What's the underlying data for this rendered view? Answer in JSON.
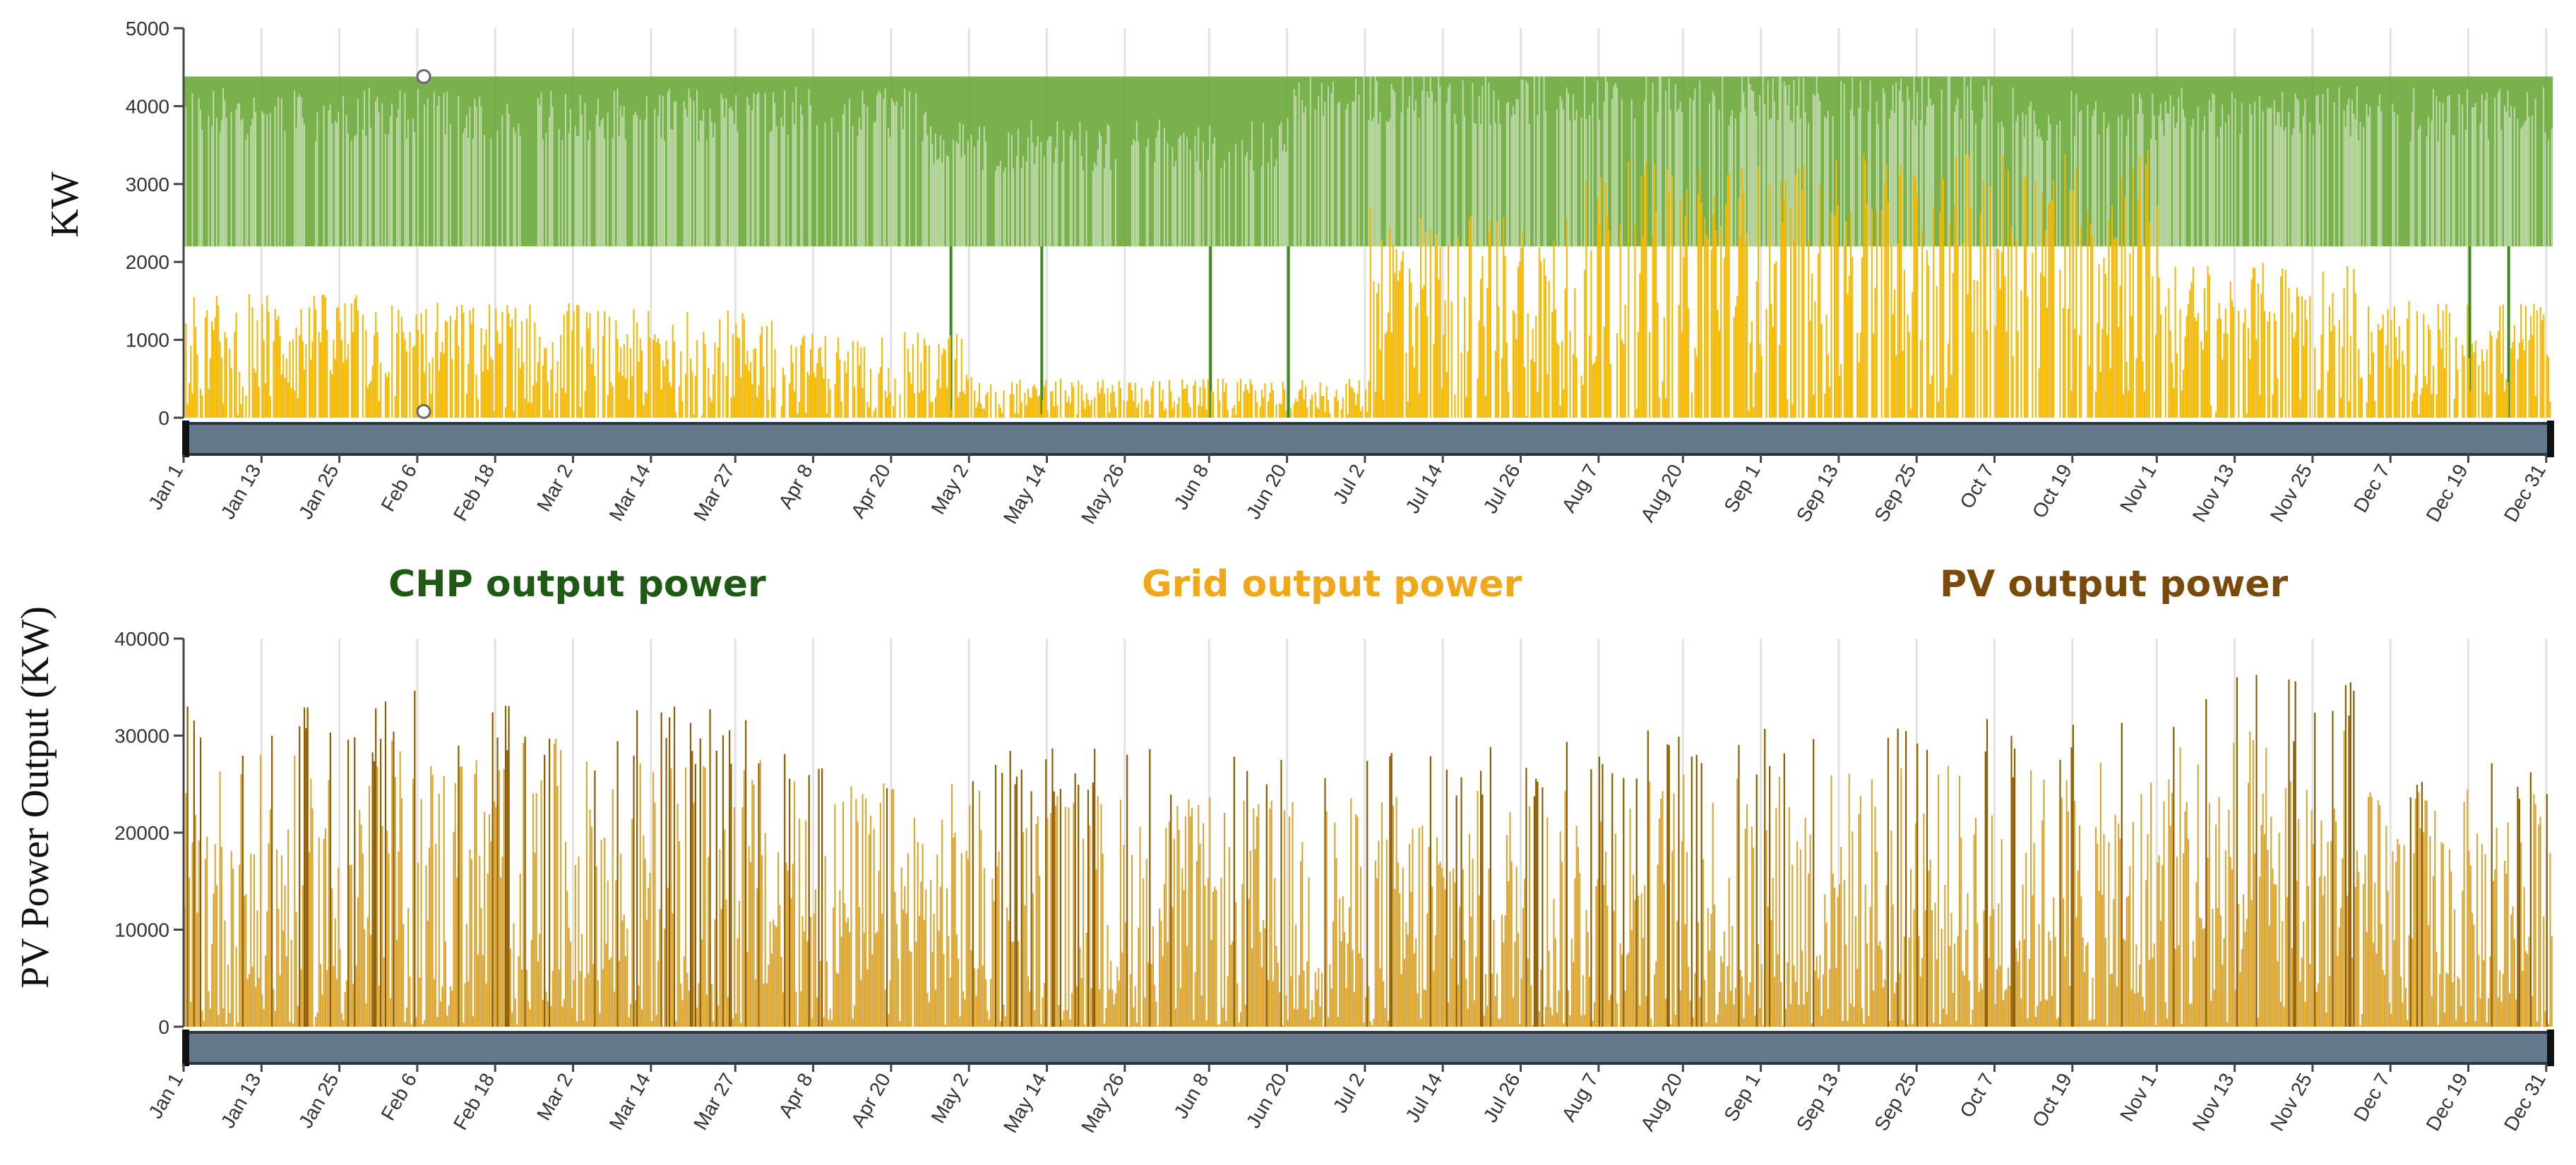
{
  "chart_data": [
    {
      "type": "bar",
      "title": "",
      "xlabel": "",
      "ylabel": "KW",
      "ylim": [
        0,
        5000
      ],
      "yticks": [
        0,
        1000,
        2000,
        3000,
        4000,
        5000
      ],
      "ytick_labels": [
        "0",
        "1000",
        "2000",
        "3000",
        "4000",
        "5000"
      ],
      "x_range_days": [
        0,
        365
      ],
      "x_tick_labels": [
        "Jan 1",
        "Jan 13",
        "Jan 25",
        "Feb 6",
        "Feb 18",
        "Mar 2",
        "Mar 14",
        "Mar 27",
        "Apr 8",
        "Apr 20",
        "May 2",
        "May 14",
        "May 26",
        "Jun 8",
        "Jun 20",
        "Jul 2",
        "Jul 14",
        "Jul 26",
        "Aug 7",
        "Aug 20",
        "Sep 1",
        "Sep 13",
        "Sep 25",
        "Oct 7",
        "Oct 19",
        "Nov 1",
        "Nov 13",
        "Nov 25",
        "Dec 7",
        "Dec 19",
        "Dec 31"
      ],
      "x_tick_days": [
        0,
        12,
        24,
        36,
        48,
        60,
        72,
        85,
        97,
        109,
        121,
        133,
        145,
        158,
        170,
        182,
        194,
        206,
        218,
        231,
        243,
        255,
        267,
        279,
        291,
        304,
        316,
        328,
        340,
        352,
        364
      ],
      "series": [
        {
          "name": "CHP output power",
          "color": "#6aaa3a",
          "base_min_kw": 2200,
          "max_kw": 4380,
          "segments": [
            {
              "from_day": 0,
              "to_day": 115,
              "typical_kw": 3900
            },
            {
              "from_day": 115,
              "to_day": 170,
              "typical_kw": 3500
            },
            {
              "from_day": 170,
              "to_day": 280,
              "typical_kw": 4100
            },
            {
              "from_day": 280,
              "to_day": 365,
              "typical_kw": 3900
            }
          ],
          "dropouts_to_zero_days": [
            118,
            132,
            158,
            170,
            352,
            358
          ]
        },
        {
          "name": "Grid output power",
          "color": "#f5b800",
          "monthly_peak_kw": [
            1600,
            1500,
            1400,
            1100,
            500,
            500,
            2700,
            3300,
            3400,
            3500,
            2000,
            1500
          ],
          "ylim": [
            0,
            5000
          ]
        }
      ],
      "markers": [
        {
          "day": 37,
          "value_kw": 4380
        },
        {
          "day": 37,
          "value_kw": 80
        }
      ]
    },
    {
      "type": "bar",
      "title": "",
      "xlabel": "",
      "ylabel": "PV Power Output (KW)",
      "ylim": [
        0,
        40000
      ],
      "yticks": [
        0,
        10000,
        20000,
        30000,
        40000
      ],
      "ytick_labels": [
        "0",
        "10000",
        "20000",
        "30000",
        "40000"
      ],
      "x_range_days": [
        0,
        365
      ],
      "x_tick_labels": [
        "Jan 1",
        "Jan 13",
        "Jan 25",
        "Feb 6",
        "Feb 18",
        "Mar 2",
        "Mar 14",
        "Mar 27",
        "Apr 8",
        "Apr 20",
        "May 2",
        "May 14",
        "May 26",
        "Jun 8",
        "Jun 20",
        "Jul 2",
        "Jul 14",
        "Jul 26",
        "Aug 7",
        "Aug 20",
        "Sep 1",
        "Sep 13",
        "Sep 25",
        "Oct 7",
        "Oct 19",
        "Nov 1",
        "Nov 13",
        "Nov 25",
        "Dec 7",
        "Dec 19",
        "Dec 31"
      ],
      "x_tick_days": [
        0,
        12,
        24,
        36,
        48,
        60,
        72,
        85,
        97,
        109,
        121,
        133,
        145,
        158,
        170,
        182,
        194,
        206,
        218,
        231,
        243,
        255,
        267,
        279,
        291,
        304,
        316,
        328,
        340,
        352,
        364
      ],
      "series": [
        {
          "name": "PV output power",
          "color": "#8b5a00",
          "fill_color": "#d9a530",
          "monthly_peak_kw": [
            33000,
            35000,
            33000,
            30000,
            29000,
            28000,
            29000,
            31000,
            32000,
            32000,
            36500,
            29000
          ]
        }
      ]
    }
  ],
  "legend": {
    "items": [
      {
        "label": "CHP output power",
        "color": "#1e5a14"
      },
      {
        "label": "Grid output power",
        "color": "#f0a818"
      },
      {
        "label": "PV output power",
        "color": "#7a4a0a"
      }
    ]
  }
}
